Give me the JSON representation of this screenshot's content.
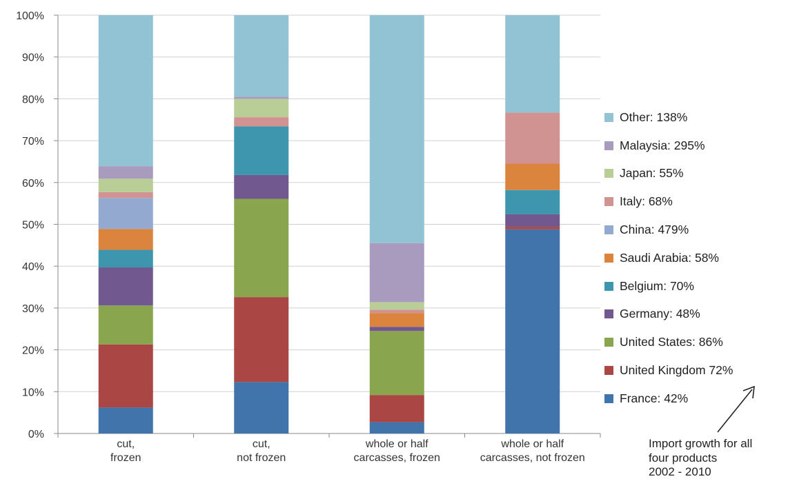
{
  "chart_data": {
    "type": "bar",
    "stacked": true,
    "percent_stacked": true,
    "categories": [
      [
        "cut,",
        "frozen"
      ],
      [
        "cut,",
        "not frozen"
      ],
      [
        "whole or half",
        "carcasses, frozen"
      ],
      [
        "whole or half",
        "carcasses, not frozen"
      ]
    ],
    "ylim": [
      0,
      100
    ],
    "yticks": [
      "0%",
      "10%",
      "20%",
      "30%",
      "40%",
      "50%",
      "60%",
      "70%",
      "80%",
      "90%",
      "100%"
    ],
    "grid": true,
    "legend_position": "right",
    "series": [
      {
        "name": "France: 42%",
        "color": "#4174aa",
        "values": [
          6.2,
          12.3,
          2.7,
          48.8
        ]
      },
      {
        "name": "United Kingdom 72%",
        "color": "#aa4643",
        "values": [
          15.1,
          20.3,
          6.5,
          0.6
        ]
      },
      {
        "name": "United States: 86%",
        "color": "#89a54e",
        "values": [
          9.3,
          23.5,
          15.3,
          0
        ]
      },
      {
        "name": "Germany: 48%",
        "color": "#71588f",
        "values": [
          9.1,
          5.7,
          1.0,
          3.0
        ]
      },
      {
        "name": "Belgium: 70%",
        "color": "#3d96ae",
        "values": [
          4.2,
          11.6,
          0,
          5.8
        ]
      },
      {
        "name": "Saudi Arabia: 58%",
        "color": "#db843d",
        "values": [
          5.0,
          0,
          3.3,
          6.3
        ]
      },
      {
        "name": "China: 479%",
        "color": "#93a9cf",
        "values": [
          7.4,
          0,
          0,
          0
        ]
      },
      {
        "name": "Italy: 68%",
        "color": "#d19392",
        "values": [
          1.4,
          2.2,
          0.8,
          12.2
        ]
      },
      {
        "name": "Japan: 55%",
        "color": "#b9cd96",
        "values": [
          3.2,
          4.4,
          1.8,
          0
        ]
      },
      {
        "name": "Malaysia: 295%",
        "color": "#a99bbd",
        "values": [
          3.0,
          0.5,
          14.1,
          0
        ]
      },
      {
        "name": "Other: 138%",
        "color": "#92c3d4",
        "values": [
          36.1,
          19.5,
          54.5,
          23.3
        ]
      }
    ],
    "annotation": [
      "Import growth for all",
      "four products",
      "2002 - 2010"
    ]
  }
}
